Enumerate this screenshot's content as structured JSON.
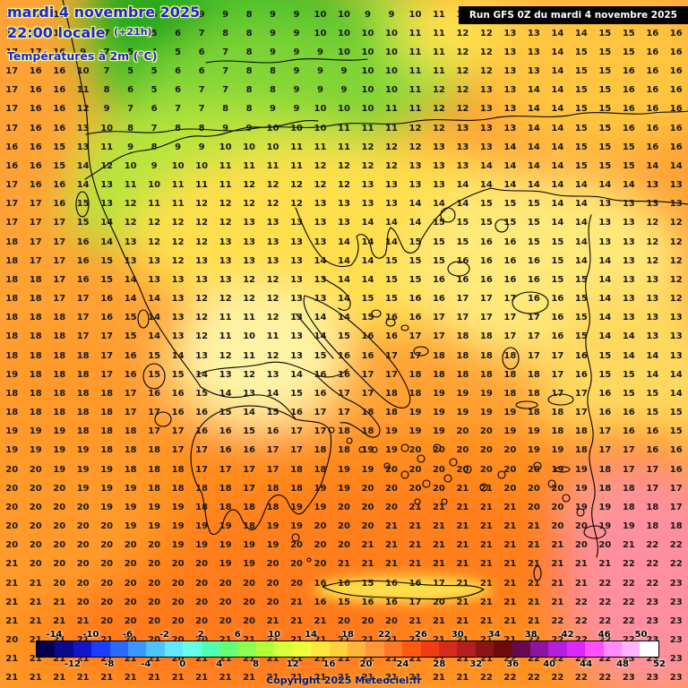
{
  "header": {
    "date_line": "mardi 4 novembre 2025",
    "time_line": "22:00 locale",
    "time_suffix": "(+21h)",
    "subtitle": "Températures à 2m (°C)"
  },
  "run_box": {
    "label": "Run GFS 0Z du mardi 4 novembre 2025"
  },
  "footer": {
    "copyright": "Copyright 2025 Meteociel.fr"
  },
  "map_colors": {
    "cold_green": "#49c02c",
    "mild_yellow": "#ffdf4d",
    "warm_orange": "#ff8d1f",
    "hot_pink": "#ff8f9e",
    "header_blue": "#2323cf"
  },
  "chart_data": {
    "type": "heatmap",
    "title": "Températures à 2m (°C) — GFS 0Z mardi 4 novembre 2025, 22:00 locale (+21h)",
    "units": "°C",
    "grid_rows": 36,
    "grid_cols": 29
  },
  "grid": {
    "rows": [
      "16 17 17 9 8 7 6 8 9 9 8 9 9 10 10 9 9 10 11 12 12 13 13 14 14 15 15 16 16",
      "17 17 16 8 7 6 5 6 7 8 8 9 9 10 10 10 10 11 11 12 12 13 13 14 14 15 15 16 16",
      "17 17 16 9 7 5 4 5 6 7 8 9 9 9 10 10 10 11 11 12 12 13 13 14 15 15 15 16 16",
      "17 16 16 10 7 5 5 6 6 7 8 8 9 9 9 10 10 11 11 12 12 13 13 14 15 15 16 16 16",
      "17 16 16 11 8 6 5 6 7 7 8 8 9 9 9 10 10 11 12 12 13 13 14 14 15 15 16 16 16",
      "17 16 16 12 9 7 6 7 7 8 8 9 9 10 10 10 11 11 12 12 13 13 14 14 15 15 16 16 16",
      "17 16 16 13 10 8 7 8 8 9 9 10 10 10 11 11 11 12 12 13 13 13 14 14 15 15 16 16 16",
      "16 16 15 13 11 9 8 9 9 10 10 10 11 11 11 12 12 12 13 13 13 14 14 14 15 15 15 16 16",
      "16 16 15 14 12 10 9 10 10 11 11 11 11 12 12 12 12 13 13 13 14 14 14 14 15 15 15 14 14",
      "17 16 16 14 13 11 10 11 11 11 12 12 12 12 12 13 13 13 13 14 14 14 14 14 14 14 14 13 13",
      "17 17 16 15 13 12 11 11 12 12 12 12 12 13 13 13 13 14 14 14 15 15 15 14 14 13 13 13 13",
      "17 17 17 15 14 12 12 12 12 12 13 13 13 13 13 14 14 14 15 15 15 15 15 14 14 13 13 12 12",
      "18 17 17 16 14 13 12 12 12 13 13 13 13 13 14 14 14 15 15 15 16 16 15 15 14 13 13 12 12",
      "18 17 17 16 15 13 13 12 13 13 13 13 13 14 14 14 15 15 15 16 16 16 16 15 14 14 13 12 12",
      "18 18 17 16 15 14 13 13 13 13 12 12 13 13 14 14 15 15 16 16 16 16 16 15 15 14 13 13 12",
      "18 18 17 17 16 14 14 13 12 12 12 12 13 13 14 15 15 16 16 17 17 17 16 16 15 14 13 13 12",
      "18 18 18 17 16 15 14 13 12 11 11 12 13 14 14 15 16 16 17 17 17 17 17 16 15 14 13 13 13",
      "18 18 18 17 17 15 14 13 12 11 10 11 13 14 15 16 16 17 17 18 18 17 17 16 15 14 14 13 13",
      "18 18 18 18 17 16 15 14 13 12 11 12 13 15 16 16 17 17 18 18 18 18 17 17 16 15 14 14 13",
      "19 18 18 18 17 16 15 15 14 13 12 13 14 16 16 17 17 18 18 18 18 18 18 17 16 15 15 14 14",
      "18 18 18 18 18 17 16 16 15 14 13 14 15 16 17 17 18 18 19 19 19 18 18 17 17 16 15 15 14",
      "18 18 18 18 18 17 17 16 16 15 14 15 16 17 17 18 18 19 19 19 19 19 18 18 17 16 16 15 15",
      "19 19 19 18 18 18 17 17 16 16 15 16 17 17 18 18 19 19 19 20 20 19 19 18 18 17 16 16 15",
      "19 19 19 19 18 18 18 17 17 16 16 17 17 18 18 19 19 20 20 20 20 20 19 19 18 17 17 16 16",
      "20 20 19 19 19 18 18 18 17 17 17 17 18 18 19 19 20 20 20 20 20 20 20 19 19 18 17 17 16",
      "20 20 20 19 19 19 18 18 18 18 17 18 18 19 19 20 20 20 20 21 21 20 20 20 19 18 18 17 17",
      "20 20 20 20 19 19 19 19 18 18 18 18 19 19 20 20 20 21 21 21 21 21 20 20 19 19 18 18 17",
      "20 20 20 20 20 19 19 19 19 19 18 19 19 20 20 20 21 21 21 21 21 21 21 20 20 19 19 18 18",
      "20 20 20 20 20 20 20 19 19 19 19 19 20 20 20 21 21 21 21 21 21 21 21 21 20 20 21 22 22",
      "21 20 20 20 20 20 20 20 20 19 19 20 20 20 21 21 21 21 21 21 21 21 21 21 21 21 22 22 22",
      "21 21 20 20 20 20 20 20 20 20 20 20 20 16 16 15 16 16 17 21 21 21 21 21 21 22 22 22 23",
      "21 21 21 20 20 20 20 20 20 20 20 20 21 16 15 16 16 17 20 21 21 21 21 21 22 22 22 23 23",
      "21 21 21 21 20 20 20 20 20 20 20 21 21 21 20 20 20 21 21 21 21 21 21 22 22 22 22 23 23",
      "20 21 21 21 21 20 20 20 20 21 21 21 21 21 21 21 21 21 21 21 21 21 22 22 22 22 22 23 23",
      "21 21 21 21 21 21 21 20 21 21 21 21 21 21 21 21 21 21 21 21 21 22 22 22 22 22 23 23 23",
      "21 21 21 21 21 21 21 21 21 21 21 21 21 21 21 21 21 21 21 21 22 22 22 22 22 22 23 23 23"
    ]
  },
  "colorbar": {
    "labels_top": [
      "-14",
      "-10",
      "-6",
      "-2",
      "2",
      "6",
      "10",
      "14",
      "18",
      "22",
      "26",
      "30",
      "34",
      "38",
      "42",
      "46",
      "50"
    ],
    "labels_bottom": [
      "-12",
      "-8",
      "-4",
      "0",
      "4",
      "8",
      "12",
      "16",
      "20",
      "24",
      "28",
      "32",
      "36",
      "40",
      "44",
      "48",
      "52"
    ],
    "colors": [
      "#05004d",
      "#0a0a8c",
      "#1414c8",
      "#1e3cff",
      "#2a6aff",
      "#3c96ff",
      "#50c3ff",
      "#64e6ff",
      "#64ffe6",
      "#50ffb4",
      "#64ff78",
      "#8cff50",
      "#b4ff3c",
      "#d8ff3c",
      "#f0ff3c",
      "#ffe83c",
      "#ffd23c",
      "#ffb43c",
      "#ff963c",
      "#ff7828",
      "#ff5a14",
      "#f03c14",
      "#d72b1e",
      "#b41e1e",
      "#8c1414",
      "#6e0a0a",
      "#640a50",
      "#8c14a0",
      "#b41edc",
      "#dc28ff",
      "#ff50ff",
      "#ff8cff",
      "#ffb4ff",
      "#ffffff"
    ]
  }
}
